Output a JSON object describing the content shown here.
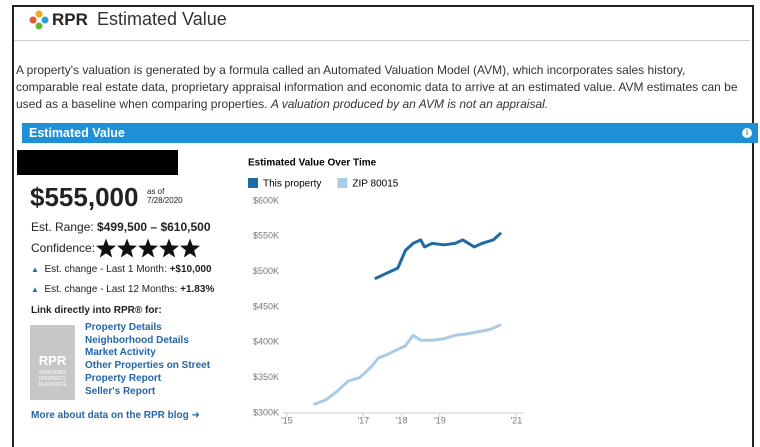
{
  "header": {
    "logo": "RPR",
    "title": "Estimated Value"
  },
  "intro": {
    "text": "A property's valuation is generated by a formula called an Automated Valuation Model (AVM), which incorporates sales history, comparable real estate data, proprietary appraisal information and economic data to arrive at an estimated value. AVM estimates can be used as a baseline when comparing properties.",
    "italic": "A valuation produced by an AVM is not an appraisal."
  },
  "panel": {
    "title": "Estimated Value",
    "value": "$555,000",
    "as_of_label": "as of",
    "as_of_date": "7/28/2020",
    "range_label": "Est. Range:",
    "range": "$499,500 – $610,500",
    "confidence_label": "Confidence:",
    "confidence_stars": 5,
    "changes": [
      {
        "label": "Est. change - Last 1 Month:",
        "value": "+$10,000"
      },
      {
        "label": "Est. change - Last 12 Months:",
        "value": "+1.83%"
      }
    ],
    "links_title": "Link directly into RPR® for:",
    "logo": {
      "name": "RPR",
      "tagline": "REALTORS PROPERTY RESOURCE"
    },
    "links": [
      "Property Details",
      "Neighborhood Details",
      "Market Activity",
      "Other Properties on Street",
      "Property Report",
      "Seller's Report"
    ],
    "blog_link": "More about data on the RPR blog ➜"
  },
  "chart_data": {
    "type": "line",
    "title": "Estimated Value Over Time",
    "series": [
      {
        "name": "This property",
        "color": "#1f6aa5",
        "x": [
          2017.3,
          2017.5,
          2017.7,
          2017.9,
          2018.1,
          2018.3,
          2018.5,
          2018.6,
          2018.8,
          2019.1,
          2019.4,
          2019.6,
          2019.9,
          2020.1,
          2020.4,
          2020.6
        ],
        "values": [
          490000,
          495000,
          500000,
          505000,
          530000,
          540000,
          545000,
          535000,
          540000,
          538000,
          540000,
          545000,
          535000,
          540000,
          545000,
          555000
        ]
      },
      {
        "name": "ZIP 80015",
        "color": "#a9cbe6",
        "x": [
          2015.7,
          2016.0,
          2016.3,
          2016.6,
          2016.9,
          2017.2,
          2017.4,
          2017.6,
          2017.9,
          2018.1,
          2018.3,
          2018.5,
          2018.8,
          2019.1,
          2019.4,
          2019.7,
          2020.0,
          2020.3,
          2020.6
        ],
        "values": [
          312000,
          318000,
          330000,
          345000,
          350000,
          365000,
          378000,
          382000,
          390000,
          395000,
          410000,
          403000,
          403000,
          405000,
          410000,
          412000,
          415000,
          418000,
          425000
        ]
      }
    ],
    "xlim": [
      2014.9,
      2021.2
    ],
    "xticks": [
      {
        "value": 2015,
        "label": "'15"
      },
      {
        "value": 2017,
        "label": "'17"
      },
      {
        "value": 2018,
        "label": "'18"
      },
      {
        "value": 2019,
        "label": "'19"
      },
      {
        "value": 2021,
        "label": "'21"
      }
    ],
    "ylim": [
      300000,
      600000
    ],
    "yticks": [
      {
        "value": 300000,
        "label": "$300K"
      },
      {
        "value": 350000,
        "label": "$350K"
      },
      {
        "value": 400000,
        "label": "$400K"
      },
      {
        "value": 450000,
        "label": "$450K"
      },
      {
        "value": 500000,
        "label": "$500K"
      },
      {
        "value": 550000,
        "label": "$550K"
      },
      {
        "value": 600000,
        "label": "$600K"
      }
    ],
    "grid": false
  }
}
